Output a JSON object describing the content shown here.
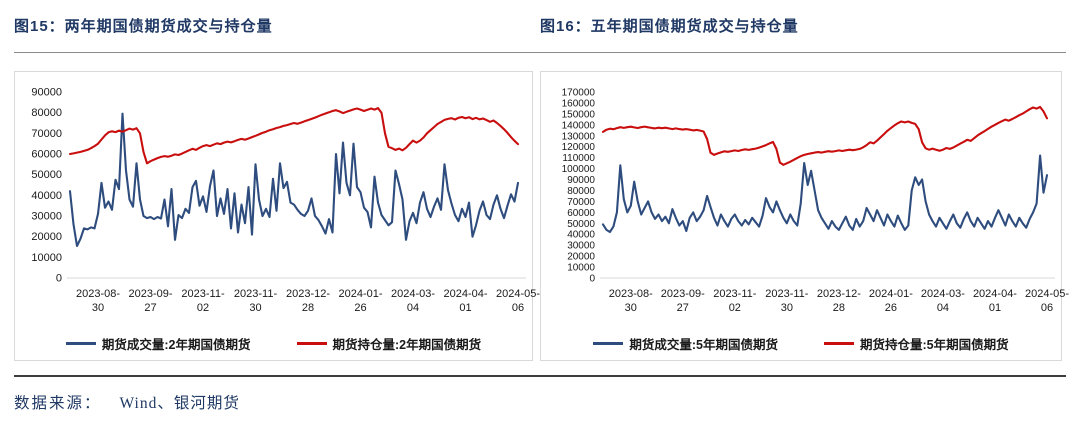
{
  "colors": {
    "title": "#1F3864",
    "volume_line": "#2E4D7E",
    "open_interest_line": "#C90E0E",
    "panel_border": "#D9D9D9",
    "axis_text": "#1A1A1A",
    "divider": "#3D3D3D"
  },
  "footer": {
    "source_label": "数据来源：",
    "source_value": "Wind、银河期货"
  },
  "figures": [
    {
      "title": "图15：两年期国债期货成交与持仓量",
      "chart_data": {
        "type": "line",
        "grid": false,
        "legend_position": "bottom",
        "y_axis": {
          "min": 0,
          "max": 90000,
          "step": 10000
        },
        "x_ticks": [
          "2023-08-30",
          "2023-09-27",
          "2023-11-02",
          "2023-11-30",
          "2023-12-28",
          "2024-01-26",
          "2024-03-04",
          "2024-04-01",
          "2024-05-06"
        ],
        "tick_indices": [
          8,
          23,
          38,
          53,
          68,
          83,
          98,
          113,
          128
        ],
        "series": [
          {
            "name": "期货成交量:2年期国债期货",
            "color": "#2E4D7E",
            "values": [
              42000,
              26000,
              15500,
              19000,
              24000,
              23500,
              24500,
              24000,
              31000,
              46000,
              34000,
              37000,
              33000,
              47500,
              43000,
              79500,
              52000,
              38000,
              34500,
              55500,
              38000,
              30000,
              29000,
              29500,
              28500,
              29500,
              28800,
              38000,
              25000,
              43000,
              18500,
              30500,
              29000,
              33500,
              31500,
              44000,
              47000,
              35000,
              39500,
              32000,
              44500,
              52000,
              30000,
              38500,
              31000,
              43000,
              24000,
              41000,
              22000,
              35500,
              26500,
              44000,
              21000,
              55000,
              38000,
              30000,
              33500,
              29500,
              48000,
              32500,
              55500,
              43500,
              46500,
              36500,
              35500,
              33000,
              31000,
              30000,
              32500,
              38500,
              30000,
              28000,
              25000,
              21500,
              28500,
              22000,
              60000,
              41000,
              65500,
              46000,
              40000,
              65000,
              44000,
              41500,
              34000,
              32000,
              24500,
              49000,
              36500,
              30500,
              28000,
              25500,
              27000,
              52000,
              45500,
              38000,
              18500,
              27500,
              31500,
              26500,
              36500,
              41500,
              33500,
              29500,
              34500,
              38500,
              33000,
              55000,
              42500,
              36000,
              30500,
              27500,
              33500,
              29500,
              36500,
              20000,
              25500,
              32500,
              37000,
              30500,
              28500,
              35500,
              40000,
              33500,
              29000,
              35000,
              40500,
              37000,
              46000
            ]
          },
          {
            "name": "期货持仓量:2年期国债期货",
            "color": "#C90E0E",
            "values": [
              60000,
              60300,
              60700,
              61000,
              61500,
              62000,
              62800,
              63800,
              65000,
              67000,
              69000,
              70500,
              71000,
              70600,
              71300,
              70800,
              71500,
              72300,
              71800,
              72500,
              70000,
              61000,
              55500,
              56500,
              57300,
              58000,
              58600,
              59000,
              58700,
              59200,
              59800,
              59500,
              60200,
              61000,
              61800,
              62500,
              62000,
              63000,
              63800,
              64300,
              63800,
              64500,
              65200,
              64800,
              65500,
              66000,
              65600,
              66200,
              66800,
              67300,
              66900,
              67500,
              68200,
              68800,
              69500,
              70200,
              70800,
              71500,
              72000,
              72600,
              73000,
              73600,
              74000,
              74500,
              75000,
              74600,
              75200,
              75800,
              76400,
              77000,
              77600,
              78300,
              79000,
              79600,
              80200,
              80800,
              81200,
              80600,
              79800,
              80400,
              81000,
              81600,
              82000,
              81500,
              80800,
              81400,
              82000,
              81500,
              82200,
              80000,
              70000,
              63500,
              62800,
              62000,
              62600,
              61800,
              63000,
              64800,
              66500,
              65500,
              66500,
              68000,
              70000,
              71500,
              73000,
              74500,
              75500,
              76500,
              77000,
              77300,
              76700,
              77500,
              77900,
              77300,
              77800,
              76900,
              77500,
              76800,
              77200,
              76400,
              75600,
              76200,
              75000,
              73600,
              72000,
              70200,
              68200,
              66400,
              64800
            ]
          }
        ]
      }
    },
    {
      "title": "图16：五年期国债期货成交与持仓量",
      "chart_data": {
        "type": "line",
        "grid": false,
        "legend_position": "bottom",
        "y_axis": {
          "min": 0,
          "max": 170000,
          "step": 10000
        },
        "x_ticks": [
          "2023-08-30",
          "2023-09-27",
          "2023-11-02",
          "2023-11-30",
          "2023-12-28",
          "2024-01-26",
          "2024-03-04",
          "2024-04-01",
          "2024-05-06"
        ],
        "tick_indices": [
          8,
          23,
          38,
          53,
          68,
          83,
          98,
          113,
          128
        ],
        "series": [
          {
            "name": "期货成交量:5年期国债期货",
            "color": "#2E4D7E",
            "values": [
              49000,
              44000,
              42000,
              47000,
              60000,
              103000,
              72000,
              60000,
              66000,
              88000,
              70000,
              58000,
              64000,
              70000,
              60000,
              54000,
              58000,
              52000,
              56000,
              50000,
              63000,
              55000,
              48000,
              52000,
              43000,
              55000,
              60000,
              52000,
              56000,
              62000,
              75000,
              65000,
              55000,
              48000,
              58000,
              52000,
              47000,
              54000,
              58000,
              52000,
              48000,
              53000,
              49000,
              55000,
              51000,
              47000,
              57000,
              73000,
              65000,
              60000,
              70000,
              62000,
              55000,
              50000,
              58000,
              52000,
              48000,
              68000,
              105000,
              85000,
              98000,
              80000,
              62000,
              55000,
              50000,
              45000,
              52000,
              47000,
              44000,
              50000,
              56000,
              48000,
              44000,
              54000,
              47000,
              52000,
              64000,
              58000,
              52000,
              62000,
              55000,
              48000,
              58000,
              52000,
              47000,
              57000,
              50000,
              44000,
              48000,
              80000,
              92000,
              85000,
              90000,
              70000,
              58000,
              52000,
              47000,
              55000,
              50000,
              45000,
              52000,
              58000,
              50000,
              46000,
              54000,
              60000,
              52000,
              47000,
              55000,
              50000,
              45000,
              52000,
              47000,
              55000,
              62000,
              55000,
              48000,
              58000,
              52000,
              47000,
              55000,
              50000,
              46000,
              54000,
              60000,
              68000,
              112000,
              78000,
              94000
            ]
          },
          {
            "name": "期货持仓量:5年期国债期货",
            "color": "#C90E0E",
            "values": [
              133500,
              135500,
              136500,
              136000,
              137000,
              137800,
              137200,
              137800,
              138300,
              137600,
              137100,
              137800,
              138400,
              137700,
              137200,
              136700,
              137400,
              136900,
              137400,
              136700,
              136100,
              136700,
              136100,
              135600,
              136100,
              135500,
              134900,
              135400,
              134700,
              133900,
              127000,
              114500,
              112500,
              113800,
              114800,
              115800,
              115300,
              116000,
              116600,
              116100,
              117000,
              117600,
              117100,
              117700,
              118300,
              119200,
              120300,
              121500,
              123000,
              124300,
              118000,
              105500,
              103500,
              104800,
              106300,
              108000,
              109800,
              111300,
              112500,
              113300,
              114000,
              114600,
              115100,
              114600,
              115300,
              115900,
              115400,
              116000,
              116600,
              116100,
              116700,
              117300,
              116800,
              117400,
              118000,
              119500,
              121500,
              124000,
              123000,
              125500,
              128500,
              131500,
              134500,
              137000,
              139500,
              141500,
              143000,
              142200,
              143000,
              141800,
              140800,
              136000,
              124000,
              118500,
              117300,
              118300,
              117300,
              116300,
              117300,
              118800,
              118000,
              119300,
              121000,
              122800,
              124500,
              126300,
              125300,
              127800,
              130300,
              132300,
              134300,
              136300,
              138300,
              140000,
              141800,
              143300,
              144800,
              143800,
              145300,
              147000,
              148800,
              150300,
              152300,
              154300,
              155800,
              154800,
              156300,
              152300,
              146000
            ]
          }
        ]
      }
    }
  ]
}
